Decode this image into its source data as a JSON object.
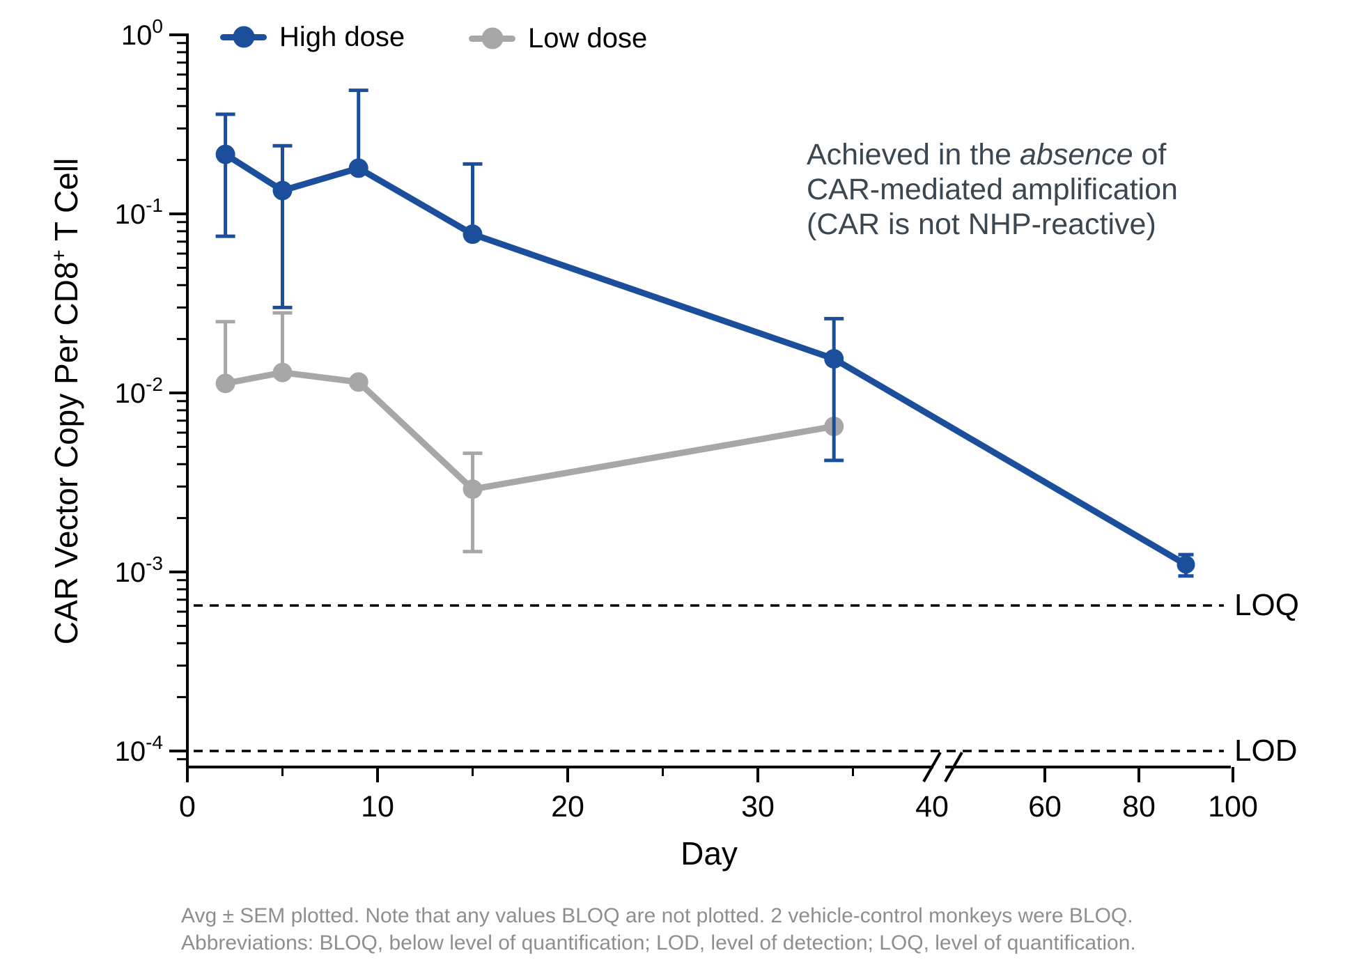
{
  "chart_data": {
    "type": "line",
    "title": "",
    "xlabel": "Day",
    "ylabel_parts": {
      "pre": "CAR Vector Copy Per CD8",
      "sup": "+",
      "post": " T Cell"
    },
    "yscale": "log",
    "ylim": [
      0.0001,
      1
    ],
    "x_major_ticks": [
      {
        "day": 0,
        "label": "0",
        "tick": true
      },
      {
        "day": 10,
        "label": "10",
        "tick": true
      },
      {
        "day": 20,
        "label": "20",
        "tick": true
      },
      {
        "day": 30,
        "label": "30",
        "tick": true
      },
      {
        "day": 40,
        "label": "40",
        "tick": false
      },
      {
        "day": 60,
        "label": "60",
        "tick": true
      },
      {
        "day": 80,
        "label": "80",
        "tick": true
      },
      {
        "day": 100,
        "label": "100",
        "tick": true
      }
    ],
    "x_minor_tick_days": [
      5,
      15,
      25,
      35
    ],
    "y_major_tick_exponents": [
      0,
      -1,
      -2,
      -3,
      -4
    ],
    "axis_break_between_days": [
      40,
      50
    ],
    "series": [
      {
        "name": "High dose",
        "color": "#1b4f9c",
        "x": [
          2,
          5,
          9,
          15,
          34,
          90
        ],
        "y": [
          0.215,
          0.135,
          0.18,
          0.077,
          0.0155,
          0.0011
        ],
        "err_hi": [
          0.36,
          0.24,
          0.49,
          0.19,
          0.026,
          0.00125
        ],
        "err_lo": [
          0.075,
          0.03,
          null,
          null,
          0.0042,
          0.00095
        ]
      },
      {
        "name": "Low dose",
        "color": "#a7a7a7",
        "x": [
          2,
          5,
          9,
          15,
          34
        ],
        "y": [
          0.0113,
          0.013,
          0.0115,
          0.0029,
          0.0065
        ],
        "err_hi": [
          0.025,
          0.028,
          null,
          0.0046,
          null
        ],
        "err_lo": [
          null,
          null,
          null,
          0.0013,
          null
        ]
      }
    ],
    "reference_lines": [
      {
        "label": "LOQ",
        "value": 0.00065
      },
      {
        "label": "LOD",
        "value": 0.0001
      }
    ],
    "annotation": {
      "line1_pre": "Achieved in the ",
      "line1_italic": "absence",
      "line1_post": " of",
      "line2": "CAR-mediated amplification",
      "line3": "(CAR is not NHP-reactive)"
    },
    "footnote": {
      "line1": "Avg ± SEM plotted. Note that any values BLOQ are not plotted. 2 vehicle-control monkeys were BLOQ.",
      "line2": "Abbreviations: BLOQ, below level of quantification; LOD, level of detection; LOQ, level of quantification."
    },
    "legend_position": "top-left",
    "grid": false
  }
}
